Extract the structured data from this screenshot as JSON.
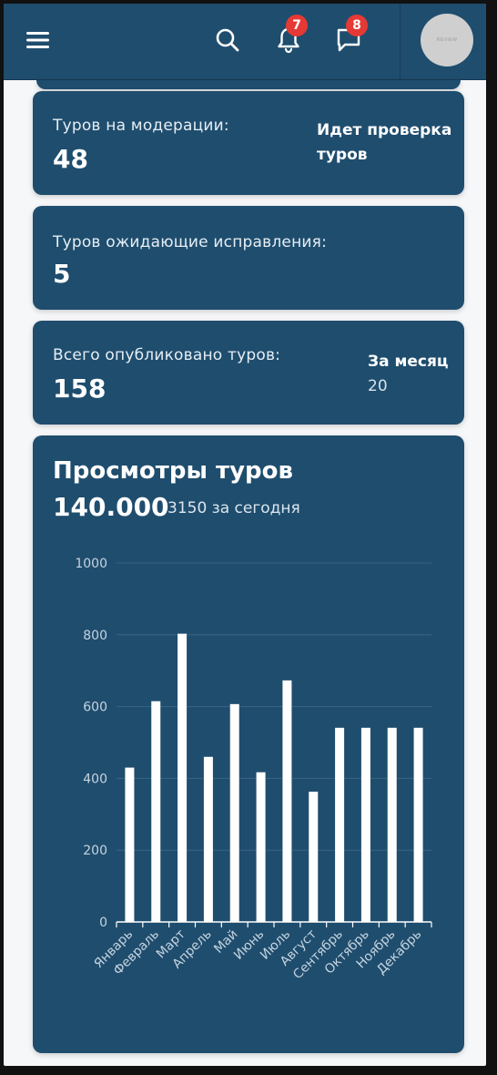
{
  "header": {
    "menu_icon": "hamburger-menu-icon",
    "search_icon": "search-icon",
    "notifications": {
      "icon": "bell-icon",
      "count": "7"
    },
    "messages": {
      "icon": "chat-bubble-icon",
      "count": "8"
    },
    "avatar_text": "REVIEW",
    "colors": {
      "bar": "#1f4d6e",
      "badge": "#e53935"
    }
  },
  "cards": {
    "moderation": {
      "label": "Туров на модерации:",
      "value": "48",
      "side_title_line1": "Идет проверка",
      "side_title_line2": "туров"
    },
    "awaiting_fix": {
      "label": "Туров ожидающие исправления:",
      "value": "5"
    },
    "published": {
      "label": "Всего опубликовано туров:",
      "value": "158",
      "side_title": "За месяц",
      "side_value": "20"
    }
  },
  "views": {
    "title": "Просмотры туров",
    "total": "140.000",
    "today": "3150 за сегодня"
  },
  "chart_data": {
    "type": "bar",
    "categories": [
      "Январь",
      "Февраль",
      "Март",
      "Апрель",
      "Май",
      "Июнь",
      "Июль",
      "Август",
      "Сентябрь",
      "Октябрь",
      "Ноябрь",
      "Декабрь"
    ],
    "values": [
      430,
      615,
      803,
      460,
      607,
      417,
      673,
      363,
      541,
      541,
      541,
      541
    ],
    "ylim": [
      0,
      1000
    ],
    "yticks": [
      "0",
      "200",
      "400",
      "600",
      "800",
      "1000"
    ],
    "grid": true,
    "bar_color": "#ffffff",
    "grid_color": "#3a6483"
  }
}
